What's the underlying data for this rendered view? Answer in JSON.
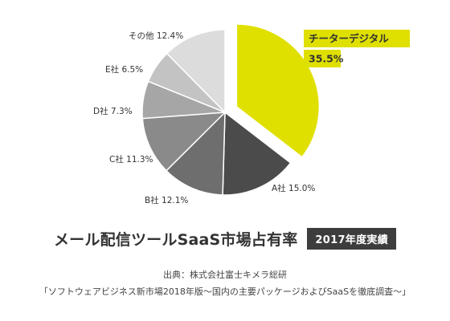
{
  "chart_data": {
    "type": "pie",
    "title": "メール配信ツールSaaS市場占有率",
    "badge": "2017年度実績",
    "slices": [
      {
        "label": "チーターデジタル",
        "value": 35.5,
        "value_text": "35.5%",
        "color": "#dfe000",
        "highlight": true
      },
      {
        "label": "A社",
        "value": 15.0,
        "value_text": "15.0%",
        "color": "#4b4b4b"
      },
      {
        "label": "B社",
        "value": 12.1,
        "value_text": "12.1%",
        "color": "#6e6e6e"
      },
      {
        "label": "C社",
        "value": 11.3,
        "value_text": "11.3%",
        "color": "#8a8a8a"
      },
      {
        "label": "D社",
        "value": 7.3,
        "value_text": "7.3%",
        "color": "#a6a6a6"
      },
      {
        "label": "E社",
        "value": 6.5,
        "value_text": "6.5%",
        "color": "#c3c3c3"
      },
      {
        "label": "その他",
        "value": 12.4,
        "value_text": "12.4%",
        "color": "#dcdcdc"
      }
    ]
  },
  "source": {
    "line1": "出典：株式会社富士キメラ総研",
    "line2": "「ソフトウェアビジネス新市場2018年版〜国内の主要パッケージおよびSaaSを徹底調査〜」"
  }
}
